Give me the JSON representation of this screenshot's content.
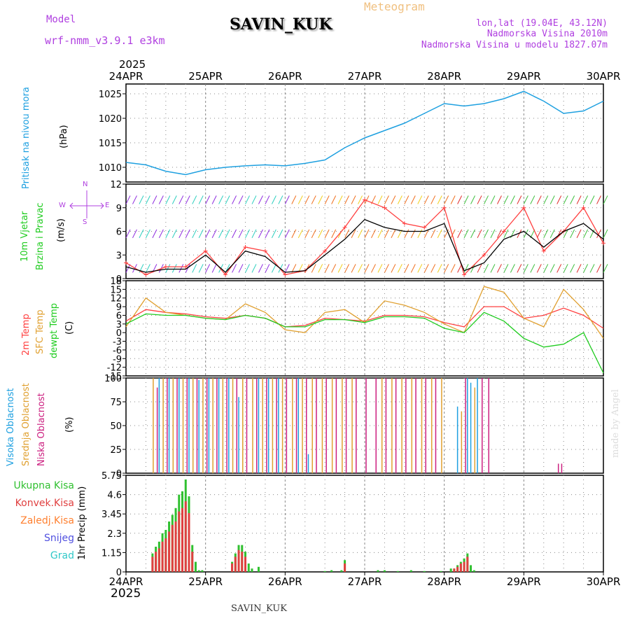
{
  "header": {
    "model_label": "Model",
    "model_name": "wrf-nmm_v3.9.1 e3km",
    "station": "SAVIN_KUK",
    "meteogram": "Meteogram",
    "lonlat": "lon,lat (19.04E, 43.12N)",
    "altitude": "Nadmorska Visina 2010m",
    "model_altitude": "Nadmorska Visina u modelu 1827.07m",
    "year": "2025",
    "credit": "made by Angel",
    "footer_station": "SAVIN_KUK"
  },
  "colors": {
    "pressure": "#1ea0e0",
    "wind_max": "#ff4040",
    "wind_mean": "#000000",
    "temp2m": "#ff4040",
    "sfc": "#e0a030",
    "dew": "#20cc20",
    "cloud_high": "#1ea0e0",
    "cloud_mid": "#e0a030",
    "cloud_low": "#cc2080",
    "precip_total": "#30c030",
    "precip_conv": "#e04040",
    "precip_frozen": "#ff8030",
    "snow": "#5050e0",
    "grad": "#30c8c8",
    "label_purple": "#b040e0"
  },
  "chart_data": [
    {
      "id": "pressure",
      "type": "line",
      "title": "Pritisak na nivou mora",
      "ylabel": "Pritisak na nivou mora",
      "unit": "(hPa)",
      "ylim": [
        1007,
        1027
      ],
      "yticks": [
        1010,
        1015,
        1020,
        1025
      ],
      "x_days": [
        "24APR",
        "25APR",
        "26APR",
        "27APR",
        "28APR",
        "29APR",
        "30APR"
      ],
      "x_hours": [
        0,
        6,
        12,
        18,
        24,
        30,
        36,
        42,
        48,
        54,
        60,
        66,
        72,
        78,
        84,
        90,
        96,
        102,
        108,
        114,
        120,
        126,
        132,
        138,
        144
      ],
      "values": [
        1011,
        1010.5,
        1009.2,
        1008.5,
        1009.5,
        1010,
        1010.3,
        1010.5,
        1010.3,
        1010.8,
        1011.5,
        1014,
        1016,
        1017.5,
        1019,
        1021,
        1023,
        1022.5,
        1023,
        1024,
        1025.5,
        1023.5,
        1021,
        1021.5,
        1023.5
      ]
    },
    {
      "id": "wind",
      "type": "line",
      "ylabel": [
        "10m Vjetar",
        "Brzina i Pravac"
      ],
      "unit": "(m/s)",
      "compass": [
        "N",
        "W",
        "E",
        "S"
      ],
      "ylim": [
        0,
        12
      ],
      "yticks": [
        0,
        3,
        6,
        9,
        12
      ],
      "series": [
        {
          "name": "max",
          "x_hours": [
            0,
            6,
            12,
            18,
            24,
            30,
            36,
            42,
            48,
            54,
            60,
            66,
            72,
            78,
            84,
            90,
            96,
            102,
            108,
            114,
            120,
            126,
            132,
            138,
            144
          ],
          "values": [
            2,
            0.5,
            1.5,
            1.5,
            3.5,
            0.5,
            4,
            3.5,
            0.5,
            1,
            3.5,
            6.5,
            10,
            9,
            7,
            6.5,
            9,
            0.5,
            3,
            6,
            9,
            3.5,
            6,
            9,
            4.5
          ]
        },
        {
          "name": "mean",
          "x_hours": [
            0,
            6,
            12,
            18,
            24,
            30,
            36,
            42,
            48,
            54,
            60,
            66,
            72,
            78,
            84,
            90,
            96,
            102,
            108,
            114,
            120,
            126,
            132,
            138,
            144
          ],
          "values": [
            1.5,
            0.8,
            1.2,
            1.2,
            3,
            0.8,
            3.5,
            2.8,
            0.8,
            1,
            3,
            5,
            7.5,
            6.5,
            6,
            6,
            7,
            1,
            2,
            5,
            6,
            4,
            6,
            7,
            5
          ]
        }
      ]
    },
    {
      "id": "temperature",
      "type": "line",
      "ylabel": [
        "2m Temp",
        "SFC Temp",
        "dewpt Temp"
      ],
      "unit": "(C)",
      "ylim": [
        -15,
        18
      ],
      "yticks": [
        -15,
        -12,
        -9,
        -6,
        -3,
        0,
        3,
        6,
        9,
        12,
        15,
        18
      ],
      "series": [
        {
          "name": "2m Temp",
          "x_hours": [
            0,
            6,
            12,
            18,
            24,
            30,
            36,
            42,
            48,
            54,
            60,
            66,
            72,
            78,
            84,
            90,
            96,
            102,
            108,
            114,
            120,
            126,
            132,
            138,
            144
          ],
          "values": [
            4,
            8,
            7,
            6.5,
            5.5,
            5,
            6,
            5,
            2,
            2.5,
            5,
            4.5,
            4,
            6,
            6,
            5.5,
            3.5,
            2,
            9,
            9,
            5,
            6,
            8.5,
            6,
            1.5
          ]
        },
        {
          "name": "SFC Temp",
          "x_hours": [
            0,
            6,
            12,
            18,
            24,
            30,
            36,
            42,
            48,
            54,
            60,
            66,
            72,
            78,
            84,
            90,
            96,
            102,
            108,
            114,
            120,
            126,
            132,
            138,
            144
          ],
          "values": [
            2,
            12,
            7,
            6,
            5,
            4.5,
            10,
            7,
            1,
            0,
            7,
            8,
            3.5,
            11,
            9.5,
            7,
            3,
            0,
            16,
            14,
            5,
            2,
            15,
            8,
            -2
          ]
        },
        {
          "name": "dewpt Temp",
          "x_hours": [
            0,
            6,
            12,
            18,
            24,
            30,
            36,
            42,
            48,
            54,
            60,
            66,
            72,
            78,
            84,
            90,
            96,
            102,
            108,
            114,
            120,
            126,
            132,
            138,
            144
          ],
          "values": [
            3,
            6.5,
            6,
            6,
            5,
            4.5,
            6,
            5,
            2,
            2,
            4.5,
            4.5,
            3.5,
            5.5,
            5.5,
            5,
            1.5,
            0,
            7,
            4,
            -2,
            -5,
            -4,
            0,
            -14
          ]
        }
      ]
    },
    {
      "id": "clouds",
      "type": "bar",
      "ylabel": [
        "Visoka Oblacnost",
        "Srednja Oblacnost",
        "Niska Oblacnost"
      ],
      "unit": "(%)",
      "ylim": [
        0,
        100
      ],
      "yticks": [
        0,
        25,
        50,
        75,
        100
      ],
      "series": [
        {
          "name": "Visoka",
          "x_hours": [
            10,
            13,
            16,
            19,
            22,
            25,
            28,
            31,
            34,
            40,
            43,
            46,
            52,
            55,
            100,
            103,
            104,
            106
          ],
          "values": [
            100,
            100,
            100,
            100,
            98,
            100,
            100,
            100,
            80,
            100,
            100,
            100,
            100,
            20,
            70,
            100,
            95,
            100
          ]
        },
        {
          "name": "Srednja",
          "x_hours": [
            8,
            11,
            14,
            17,
            20,
            23,
            26,
            29,
            32,
            35,
            38,
            41,
            44,
            47,
            50,
            53,
            56,
            59,
            62,
            65,
            68,
            77,
            80,
            83,
            86,
            89,
            92,
            95,
            101,
            105
          ],
          "values": [
            100,
            100,
            100,
            100,
            100,
            100,
            100,
            100,
            100,
            100,
            100,
            100,
            100,
            100,
            100,
            100,
            100,
            100,
            100,
            100,
            100,
            100,
            100,
            100,
            100,
            100,
            100,
            100,
            65,
            90
          ]
        },
        {
          "name": "Niska",
          "x_hours": [
            9,
            12,
            15,
            18,
            21,
            24,
            27,
            30,
            33,
            36,
            39,
            42,
            45,
            48,
            51,
            54,
            57,
            60,
            63,
            66,
            69,
            72,
            75,
            78,
            81,
            84,
            87,
            90,
            93,
            102,
            107,
            109,
            130,
            131
          ],
          "values": [
            90,
            100,
            100,
            100,
            100,
            100,
            100,
            100,
            100,
            100,
            100,
            100,
            100,
            100,
            100,
            100,
            100,
            100,
            100,
            100,
            100,
            100,
            100,
            100,
            100,
            100,
            100,
            100,
            100,
            100,
            100,
            100,
            10,
            10
          ]
        }
      ]
    },
    {
      "id": "precip",
      "type": "bar",
      "legend": [
        "Ukupna Kisa",
        "Konvek.Kisa",
        "Zaledj.Kisa",
        "Snijeg",
        "Grad"
      ],
      "ylabel": "1hr Precip (mm)",
      "ylim": [
        0,
        5.75
      ],
      "yticks": [
        0,
        1.15,
        2.3,
        3.45,
        4.6,
        5.75
      ],
      "yticklabels": [
        "0",
        "1.15",
        "2.3",
        "3.45",
        "4.6",
        "5.75"
      ],
      "series": [
        {
          "name": "Ukupna Kisa",
          "x_hours": [
            8,
            9,
            10,
            11,
            12,
            13,
            14,
            15,
            16,
            17,
            18,
            19,
            20,
            21,
            22,
            23,
            32,
            33,
            34,
            35,
            36,
            37,
            38,
            40,
            60,
            62,
            65,
            66,
            76,
            78,
            82,
            86,
            90,
            95,
            98,
            99,
            100,
            101,
            102,
            103,
            104,
            105
          ],
          "values": [
            1.1,
            1.5,
            1.8,
            2.3,
            2.5,
            3.0,
            3.4,
            3.8,
            4.6,
            4.8,
            5.5,
            4.5,
            1.6,
            0.6,
            0.1,
            0.1,
            0.6,
            1.1,
            1.6,
            1.6,
            1.2,
            0.5,
            0.2,
            0.3,
            0.05,
            0.1,
            0.1,
            0.7,
            0.1,
            0.1,
            0.05,
            0.1,
            0.05,
            0.05,
            0.2,
            0.2,
            0.4,
            0.6,
            0.8,
            1.1,
            0.4,
            0.1
          ]
        },
        {
          "name": "Konvek.Kisa",
          "x_hours": [
            8,
            9,
            10,
            11,
            12,
            13,
            14,
            15,
            16,
            17,
            18,
            19,
            20,
            32,
            33,
            34,
            35,
            36,
            66,
            99,
            100,
            101,
            102,
            103
          ],
          "values": [
            0.9,
            1.2,
            1.4,
            1.8,
            2.0,
            2.4,
            2.8,
            3.0,
            3.6,
            3.8,
            4.2,
            3.5,
            1.2,
            0.5,
            0.9,
            1.3,
            1.2,
            0.9,
            0.5,
            0.2,
            0.3,
            0.5,
            0.6,
            0.9
          ]
        }
      ]
    }
  ]
}
